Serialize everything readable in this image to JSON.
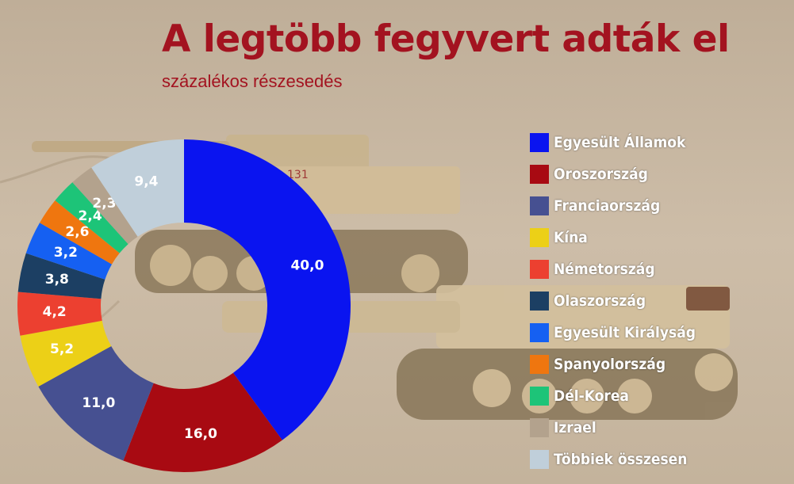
{
  "header": {
    "title": "A legtöbb fegyvert adták el",
    "subtitle": "százalékos részesedés"
  },
  "colors": {
    "title": "#a31320",
    "background": "#c9b8a2"
  },
  "background_image": "sand-with-toy-tanks",
  "chart_data": {
    "type": "pie",
    "donut": true,
    "legend_position": "right",
    "categories": [
      "Egyesült Államok",
      "Oroszország",
      "Franciaország",
      "Kína",
      "Németország",
      "Olaszország",
      "Egyesült Királyság",
      "Spanyolország",
      "Dél-Korea",
      "Izrael",
      "Többiek összesen"
    ],
    "values": [
      40.0,
      16.0,
      11.0,
      5.2,
      4.2,
      3.8,
      3.2,
      2.6,
      2.4,
      2.3,
      9.4
    ],
    "value_labels": [
      "40,0",
      "16,0",
      "11,0",
      "5,2",
      "4,2",
      "3,8",
      "3,2",
      "2,6",
      "2,4",
      "2,3",
      "9,4"
    ],
    "colors": [
      "#0a14f0",
      "#a80a12",
      "#465091",
      "#ecd017",
      "#ec4030",
      "#1c3f63",
      "#1560f2",
      "#ef760f",
      "#1dc478",
      "#b3a28d",
      "#c0cfda"
    ]
  }
}
